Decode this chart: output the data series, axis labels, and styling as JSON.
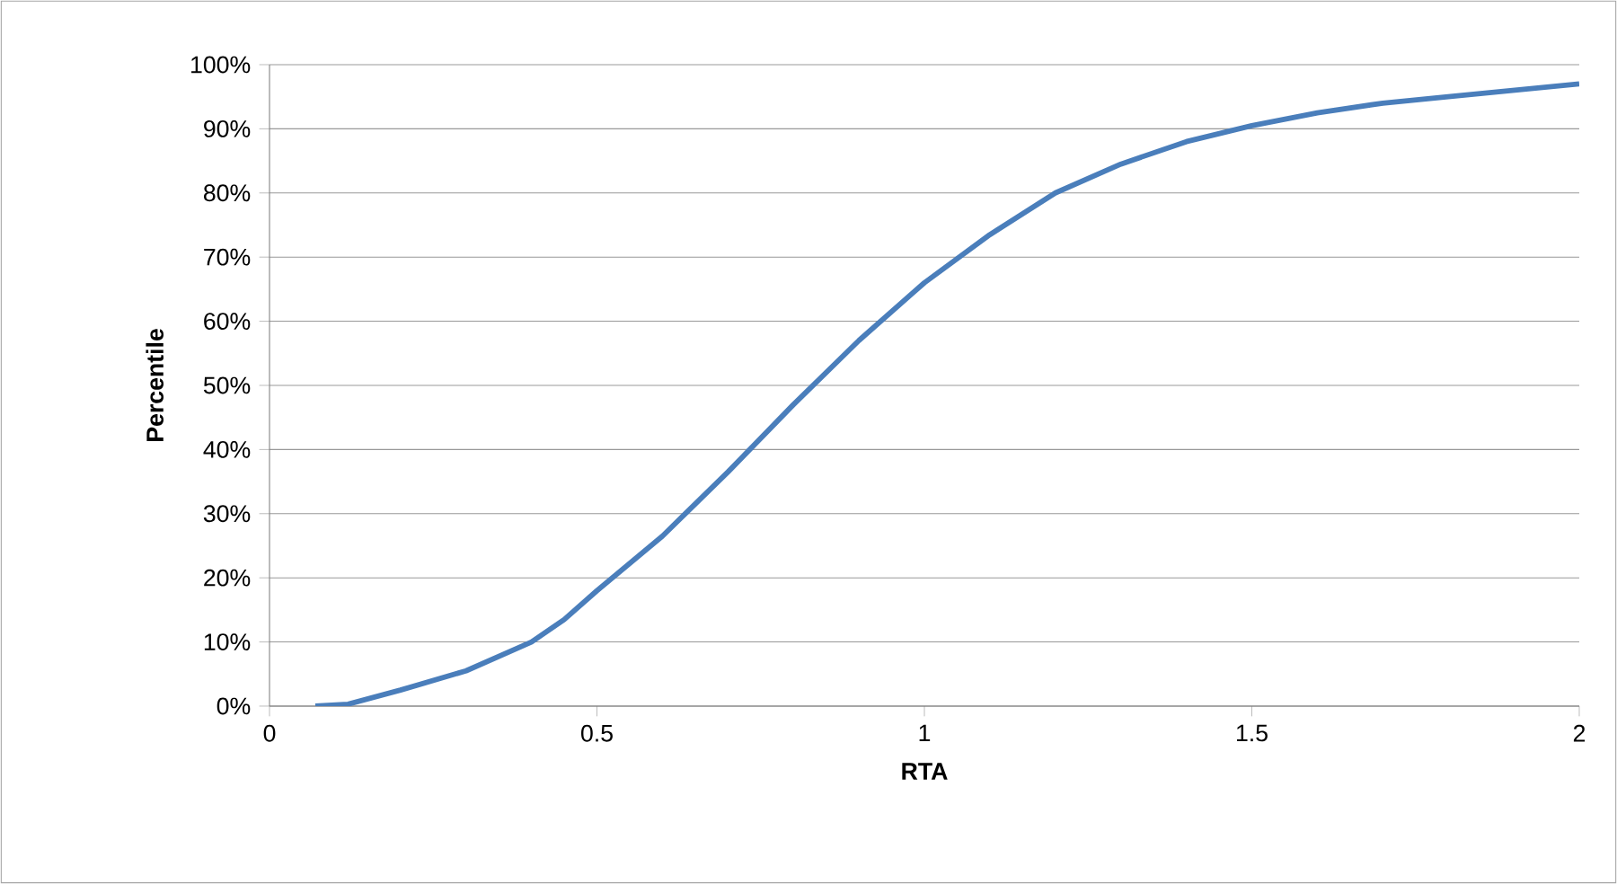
{
  "chart_data": {
    "type": "line",
    "xlabel": "RTA",
    "ylabel": "Percentile",
    "series": [
      {
        "color": "#4a7ebb",
        "x": [
          0.07,
          0.12,
          0.2,
          0.3,
          0.4,
          0.45,
          0.5,
          0.6,
          0.7,
          0.8,
          0.9,
          1.0,
          1.1,
          1.2,
          1.3,
          1.4,
          1.5,
          1.6,
          1.7,
          1.8,
          1.9,
          2.0
        ],
        "values": [
          0,
          0.3,
          2.5,
          5.5,
          10,
          13.5,
          18,
          26.5,
          36.5,
          47,
          57,
          66,
          73.5,
          80,
          84.5,
          88,
          90.5,
          92.5,
          94,
          95,
          96,
          97
        ]
      }
    ],
    "xlim": [
      0,
      2
    ],
    "ylim": [
      0,
      100
    ],
    "xticks": [
      0,
      0.5,
      1,
      1.5,
      2
    ],
    "yticks": [
      {
        "value": 0,
        "label": "0%"
      },
      {
        "value": 10,
        "label": "10%"
      },
      {
        "value": 20,
        "label": "20%"
      },
      {
        "value": 30,
        "label": "30%"
      },
      {
        "value": 40,
        "label": "40%"
      },
      {
        "value": 50,
        "label": "50%"
      },
      {
        "value": 60,
        "label": "60%"
      },
      {
        "value": 70,
        "label": "70%"
      },
      {
        "value": 80,
        "label": "80%"
      },
      {
        "value": 90,
        "label": "90%"
      },
      {
        "value": 100,
        "label": "100%"
      }
    ],
    "grid": "y",
    "marker": "none",
    "line_style": "solid"
  }
}
